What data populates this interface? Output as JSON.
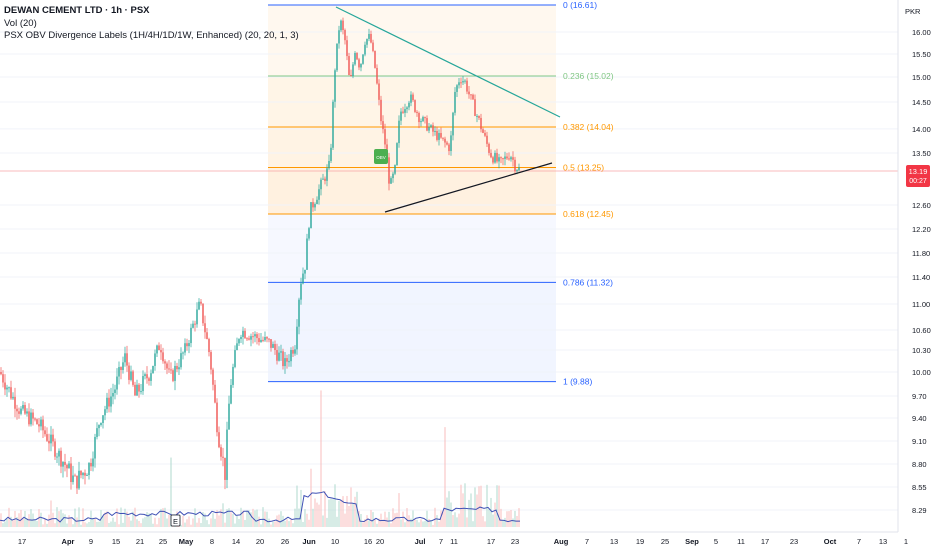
{
  "header": {
    "symbol_title": "DEWAN CEMENT LTD · 1h · PSX",
    "volume_indicator": "Vol (20)",
    "obv_indicator": "PSX OBV Divergence Labels (1H/4H/1D/1W, Enhanced) (20, 20, 1, 3)"
  },
  "price_scale": {
    "currency": "PKR",
    "ticks": [
      "16.00",
      "15.50",
      "15.00",
      "14.50",
      "14.00",
      "13.50",
      "12.60",
      "12.20",
      "11.80",
      "11.40",
      "11.00",
      "10.60",
      "10.30",
      "10.00",
      "9.70",
      "9.40",
      "9.10",
      "8.80",
      "8.55",
      "8.29"
    ]
  },
  "last_price": {
    "value": "13.19",
    "countdown": "00:27",
    "color": "#f23645"
  },
  "fibonacci": {
    "levels": [
      {
        "label": "0 (16.61)",
        "price": 16.61,
        "color": "#2962ff"
      },
      {
        "label": "0.236 (15.02)",
        "price": 15.02,
        "color": "#81c784"
      },
      {
        "label": "0.382 (14.04)",
        "price": 14.04,
        "color": "#ff9800"
      },
      {
        "label": "0.5 (13.25)",
        "price": 13.25,
        "color": "#ff9800"
      },
      {
        "label": "0.618 (12.45)",
        "price": 12.45,
        "color": "#ff9800"
      },
      {
        "label": "0.786 (11.32)",
        "price": 11.32,
        "color": "#2962ff"
      },
      {
        "label": "1 (9.88)",
        "price": 9.88,
        "color": "#2962ff"
      }
    ]
  },
  "time_axis": {
    "labels": [
      "17",
      "Apr",
      "9",
      "15",
      "21",
      "25",
      "May",
      "8",
      "14",
      "20",
      "26",
      "Jun",
      "10",
      "16",
      "20",
      "Jul",
      "7",
      "11",
      "17",
      "23",
      "Aug",
      "7",
      "13",
      "19",
      "25",
      "Sep",
      "5",
      "11",
      "17",
      "23",
      "Oct",
      "7",
      "13",
      "1"
    ]
  },
  "event_marker": {
    "label": "E"
  },
  "signal_label": {
    "text": "OBV",
    "color": "#4caf50"
  },
  "colors": {
    "up": "#26a69a",
    "down": "#ef5350",
    "trendline_upper": "#26a69a",
    "trendline_lower": "#131722",
    "obv_line": "#3f51b5"
  }
}
